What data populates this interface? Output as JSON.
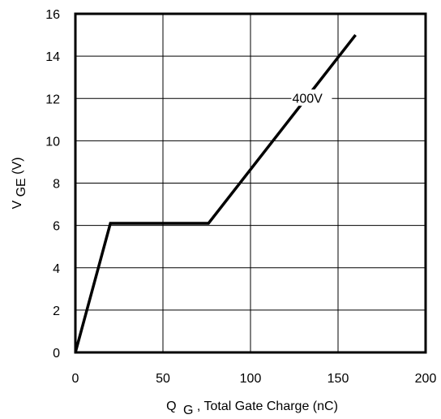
{
  "chart_data": {
    "type": "line",
    "xlabel": {
      "main": "Q",
      "sub": "G",
      "rest": ", Total Gate Charge (nC)"
    },
    "ylabel": {
      "main": "V",
      "sub": "GE",
      "rest": " (V)"
    },
    "xlim": [
      0,
      200
    ],
    "ylim": [
      0,
      16
    ],
    "x_ticks": [
      0,
      50,
      100,
      150,
      200
    ],
    "y_ticks": [
      0,
      2,
      4,
      6,
      8,
      10,
      12,
      14,
      16
    ],
    "grid": true,
    "series": [
      {
        "label": "400V",
        "color": "#000000",
        "x": [
          0,
          20,
          76,
          160
        ],
        "y": [
          0,
          6.1,
          6.1,
          15
        ]
      }
    ]
  }
}
